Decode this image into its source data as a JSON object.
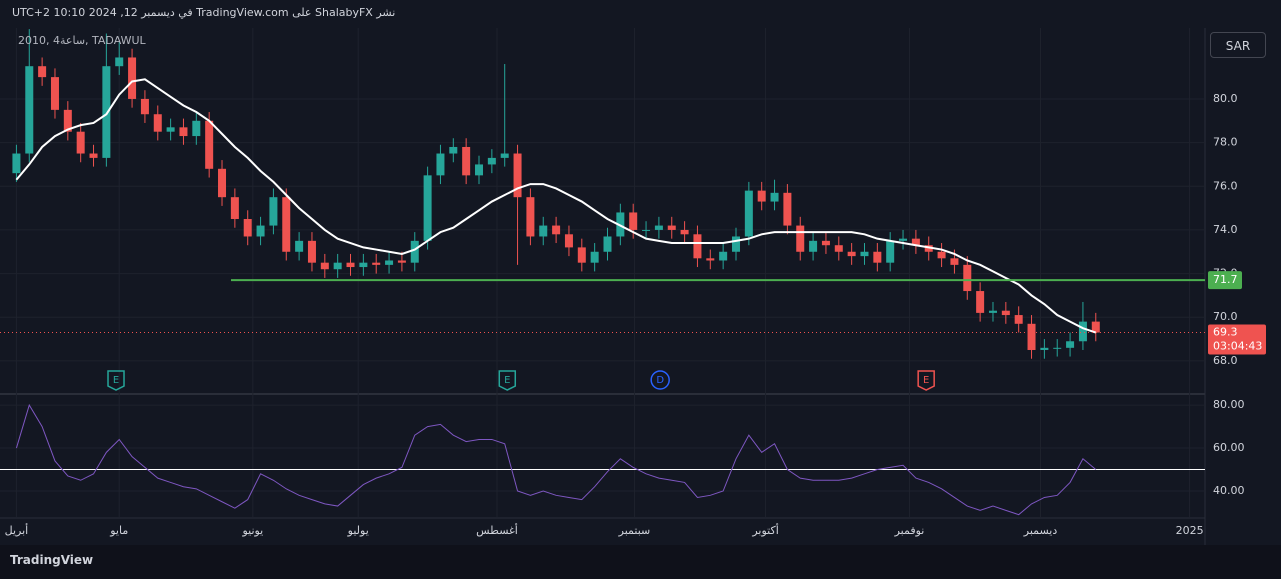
{
  "header": {
    "published": "نشر ShalabyFX على TradingView.com في ديسمبر 12, 2024 10:10 UTC+2",
    "symbol": "2010, 4ساعة, TADAWUL",
    "currency": "SAR",
    "brand": "TradingView"
  },
  "chart_data": [
    {
      "type": "candlestick",
      "open": [
        76.6,
        77.5,
        81.5,
        81,
        79.5,
        78.5,
        77.5,
        77.3,
        81.5,
        81.9,
        80,
        79.3,
        78.5,
        78.7,
        78.3,
        79,
        76.8,
        75.5,
        74.5,
        73.7,
        74.2,
        75.5,
        73,
        73.5,
        72.5,
        72.2,
        72.5,
        72.3,
        72.5,
        72.4,
        72.6,
        72.5,
        73.5,
        76.5,
        77.5,
        77.8,
        76.5,
        77,
        77.3,
        77.5,
        75.5,
        73.7,
        74.2,
        73.8,
        73.2,
        72.5,
        73,
        73.7,
        74.8,
        74,
        74,
        74.2,
        74,
        73.8,
        72.7,
        72.6,
        73,
        73.7,
        75.8,
        75.3,
        75.7,
        74.2,
        73,
        73.5,
        73.3,
        73,
        72.8,
        73,
        72.5,
        73.5,
        73.6,
        73.3,
        73,
        72.7,
        72.4,
        71.2,
        70.2,
        70.3,
        70.1,
        69.7,
        68.5,
        68.6,
        68.6,
        68.9,
        69.8
      ],
      "high": [
        77.9,
        83.2,
        81.9,
        81.4,
        79.9,
        78.9,
        77.9,
        83.0,
        82.6,
        82.3,
        80.4,
        79.7,
        79.1,
        79.1,
        79.4,
        79.4,
        77.2,
        75.9,
        74.9,
        74.6,
        75.9,
        75.9,
        73.9,
        73.9,
        72.9,
        72.9,
        72.9,
        72.9,
        72.9,
        73.0,
        73.0,
        73.9,
        76.9,
        77.9,
        78.2,
        78.2,
        77.4,
        77.7,
        81.6,
        77.9,
        75.9,
        74.6,
        74.6,
        74.2,
        73.6,
        73.4,
        74.1,
        75.2,
        75.2,
        74.4,
        74.6,
        74.6,
        74.4,
        74.2,
        73.1,
        73.4,
        74.1,
        76.2,
        76.2,
        76.3,
        76.1,
        74.6,
        73.9,
        73.9,
        73.7,
        73.4,
        73.4,
        73.4,
        73.9,
        74.0,
        74.0,
        73.7,
        73.4,
        73.1,
        72.8,
        71.6,
        70.7,
        70.7,
        70.5,
        70.1,
        69.0,
        69.0,
        69.3,
        70.7,
        70.2
      ],
      "low": [
        76.2,
        77.1,
        80.6,
        79.1,
        78.1,
        77.1,
        76.9,
        76.9,
        81.1,
        79.6,
        78.9,
        78.1,
        78.1,
        77.9,
        77.9,
        76.4,
        75.1,
        74.1,
        73.3,
        73.3,
        73.8,
        72.6,
        72.6,
        72.1,
        71.8,
        71.8,
        71.9,
        71.9,
        72.0,
        72.0,
        72.1,
        72.1,
        73.1,
        76.1,
        77.1,
        76.1,
        76.1,
        76.6,
        76.9,
        72.4,
        73.3,
        73.3,
        73.4,
        72.8,
        72.1,
        72.1,
        72.6,
        73.3,
        73.6,
        73.6,
        73.6,
        73.6,
        73.4,
        72.3,
        72.2,
        72.2,
        72.6,
        73.3,
        74.9,
        74.9,
        73.8,
        72.6,
        72.6,
        72.9,
        72.6,
        72.4,
        72.4,
        72.1,
        72.1,
        73.1,
        72.9,
        72.6,
        72.3,
        72.0,
        70.8,
        69.8,
        69.8,
        69.7,
        69.3,
        68.1,
        68.1,
        68.2,
        68.2,
        68.5,
        68.9
      ],
      "close": [
        77.5,
        81.5,
        81,
        79.5,
        78.5,
        77.5,
        77.3,
        81.5,
        81.9,
        80,
        79.3,
        78.5,
        78.7,
        78.3,
        79,
        76.8,
        75.5,
        74.5,
        73.7,
        74.2,
        75.5,
        73,
        73.5,
        72.5,
        72.2,
        72.5,
        72.3,
        72.5,
        72.4,
        72.6,
        72.5,
        73.5,
        76.5,
        77.5,
        77.8,
        76.5,
        77,
        77.3,
        77.5,
        75.5,
        73.7,
        74.2,
        73.8,
        73.2,
        72.5,
        73,
        73.7,
        74.8,
        74,
        74,
        74.2,
        74,
        73.8,
        72.7,
        72.6,
        73,
        73.7,
        75.8,
        75.3,
        75.7,
        74.2,
        73,
        73.5,
        73.3,
        73,
        72.8,
        73,
        72.5,
        73.5,
        73.6,
        73.3,
        73,
        72.7,
        72.4,
        71.2,
        70.2,
        70.3,
        70.1,
        69.7,
        68.5,
        68.6,
        68.6,
        68.9,
        69.8,
        69.3
      ],
      "up_color": "#26a69a",
      "down_color": "#ef5350",
      "series": [
        {
          "color": "#ffffff",
          "values": [
            76.3,
            77.0,
            77.8,
            78.3,
            78.6,
            78.8,
            78.9,
            79.3,
            80.2,
            80.8,
            80.9,
            80.5,
            80.1,
            79.7,
            79.4,
            79.0,
            78.4,
            77.8,
            77.3,
            76.7,
            76.2,
            75.6,
            75.0,
            74.5,
            74.0,
            73.6,
            73.4,
            73.2,
            73.1,
            73.0,
            72.9,
            73.1,
            73.5,
            73.9,
            74.1,
            74.5,
            74.9,
            75.3,
            75.6,
            75.9,
            76.1,
            76.1,
            75.9,
            75.6,
            75.3,
            74.9,
            74.5,
            74.2,
            73.9,
            73.6,
            73.5,
            73.4,
            73.4,
            73.4,
            73.4,
            73.4,
            73.5,
            73.6,
            73.8,
            73.9,
            73.9,
            73.9,
            73.9,
            73.9,
            73.9,
            73.9,
            73.8,
            73.6,
            73.5,
            73.4,
            73.3,
            73.2,
            73.1,
            72.9,
            72.6,
            72.4,
            72.1,
            71.8,
            71.5,
            71.0,
            70.6,
            70.1,
            69.8,
            69.5,
            69.3
          ]
        }
      ],
      "hline": {
        "value": 71.7,
        "color": "#4caf50"
      },
      "last_price": {
        "value": 69.3,
        "countdown": "03:04:43",
        "color": "#ef5350"
      },
      "events": [
        {
          "label": "E",
          "x": 7.75,
          "color": "#26a69a"
        },
        {
          "label": "E",
          "x": 38.2,
          "color": "#26a69a"
        },
        {
          "label": "D",
          "x": 50.1,
          "color": "#2962ff"
        },
        {
          "label": "E",
          "x": 70.8,
          "color": "#ef5350"
        }
      ],
      "xlim": [
        -0.5,
        92.5
      ],
      "xticks": [
        {
          "value": 0,
          "label": "أبريل"
        },
        {
          "value": 8,
          "label": "مايو"
        },
        {
          "value": 18.4,
          "label": "يونيو"
        },
        {
          "value": 26.6,
          "label": "يوليو"
        },
        {
          "value": 37.4,
          "label": "أغسطس"
        },
        {
          "value": 48.1,
          "label": "سبتمبر"
        },
        {
          "value": 58.3,
          "label": "أكتوبر"
        },
        {
          "value": 69.5,
          "label": "نوفمبر"
        },
        {
          "value": 79.7,
          "label": "ديسمبر"
        },
        {
          "value": 91.3,
          "label": "2025"
        }
      ],
      "ylim": [
        66.53,
        83.25
      ],
      "yticks": [
        {
          "value": 68,
          "label": "68.0"
        },
        {
          "value": 70,
          "label": "70.0"
        },
        {
          "value": 72,
          "label": "72.0"
        },
        {
          "value": 74,
          "label": "74.0"
        },
        {
          "value": 76,
          "label": "76.0"
        },
        {
          "value": 78,
          "label": "78.0"
        },
        {
          "value": 80,
          "label": "80.0"
        }
      ],
      "grid": true
    },
    {
      "type": "line",
      "series": [
        {
          "color": "#7e57c2",
          "values": [
            60,
            80,
            70,
            54,
            47,
            45,
            48,
            58,
            64,
            56,
            51,
            46,
            44,
            42,
            41,
            38,
            35,
            32,
            36,
            48,
            45,
            41,
            38,
            36,
            34,
            33,
            38,
            43,
            46,
            48,
            51,
            66,
            70,
            71,
            66,
            63,
            64,
            64,
            62,
            40,
            38,
            40,
            38,
            37,
            36,
            42,
            49,
            55,
            51,
            48,
            46,
            45,
            44,
            37,
            38,
            40,
            55,
            66,
            58,
            62,
            50,
            46,
            45,
            45,
            45,
            46,
            48,
            50,
            51,
            52,
            46,
            44,
            41,
            37,
            33,
            31,
            33,
            31,
            29,
            34,
            37,
            38,
            44,
            55,
            50
          ]
        }
      ],
      "hline": {
        "value": 50,
        "color": "#ffffff"
      },
      "xlim": [
        -0.5,
        92.5
      ],
      "ylim": [
        27.9,
        84.7
      ],
      "yticks": [
        {
          "value": 40,
          "label": "40.00"
        },
        {
          "value": 60,
          "label": "60.00"
        },
        {
          "value": 80,
          "label": "80.00"
        }
      ],
      "grid": true
    }
  ]
}
